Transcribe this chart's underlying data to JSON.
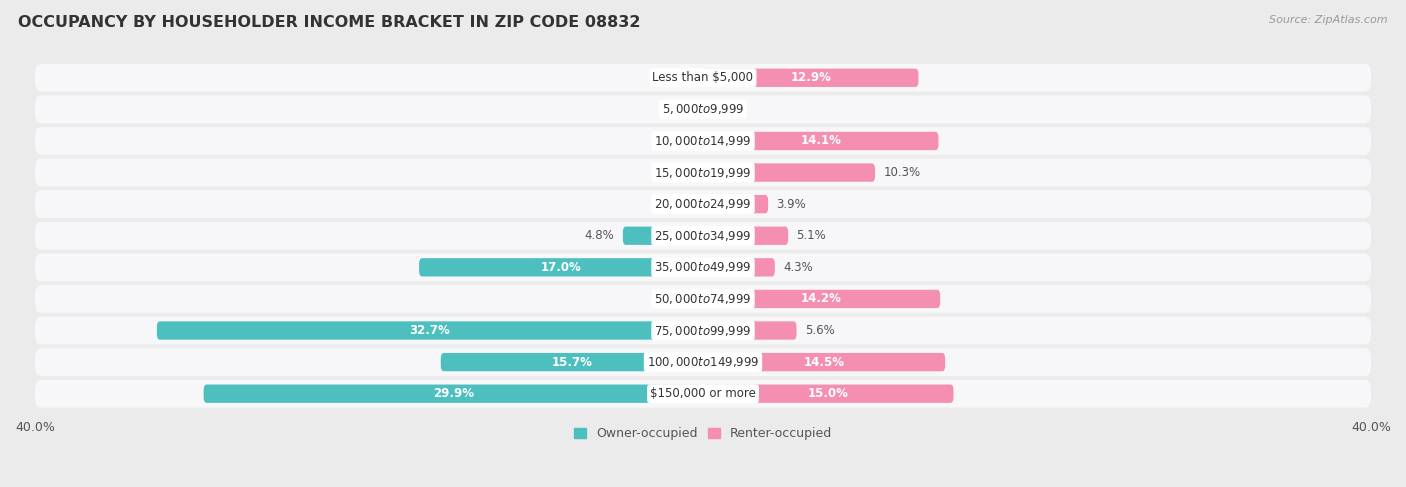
{
  "title": "OCCUPANCY BY HOUSEHOLDER INCOME BRACKET IN ZIP CODE 08832",
  "source": "Source: ZipAtlas.com",
  "categories": [
    "Less than $5,000",
    "$5,000 to $9,999",
    "$10,000 to $14,999",
    "$15,000 to $19,999",
    "$20,000 to $24,999",
    "$25,000 to $34,999",
    "$35,000 to $49,999",
    "$50,000 to $74,999",
    "$75,000 to $99,999",
    "$100,000 to $149,999",
    "$150,000 or more"
  ],
  "owner_values": [
    0.0,
    0.0,
    0.0,
    0.0,
    0.0,
    4.8,
    17.0,
    0.0,
    32.7,
    15.7,
    29.9
  ],
  "renter_values": [
    12.9,
    0.0,
    14.1,
    10.3,
    3.9,
    5.1,
    4.3,
    14.2,
    5.6,
    14.5,
    15.0
  ],
  "owner_color": "#4DBFBF",
  "renter_color": "#F48FB1",
  "owner_label": "Owner-occupied",
  "renter_label": "Renter-occupied",
  "xlim": 40.0,
  "background_color": "#ebebeb",
  "bar_background": "#f7f7f9",
  "row_bg_color": "#f7f7f9",
  "title_fontsize": 11.5,
  "label_fontsize": 8.5,
  "axis_label_fontsize": 9,
  "source_fontsize": 8
}
